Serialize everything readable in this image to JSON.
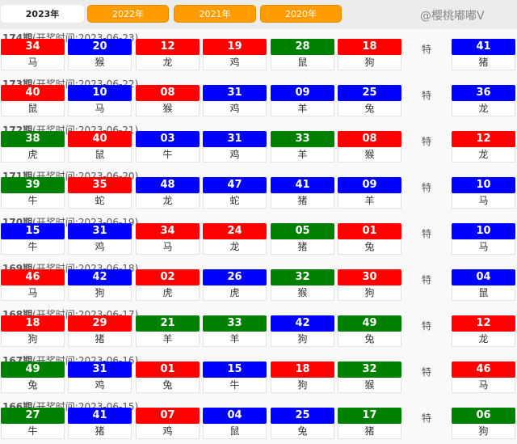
{
  "tabs": [
    "2023年",
    "2022年",
    "2021年",
    "2020年"
  ],
  "active_tab": 0,
  "special_label": "特",
  "issue_suffix": "期",
  "time_prefix": "(开奖时间:",
  "time_suffix": ")",
  "colors": {
    "r": "#ff0000",
    "b": "#0000ff",
    "g": "#008000"
  },
  "watermark": "@樱桃嘟嘟V",
  "draws": [
    {
      "issue": "174",
      "date": "2023-06-23",
      "balls": [
        [
          "34",
          "r",
          "马"
        ],
        [
          "20",
          "b",
          "猴"
        ],
        [
          "12",
          "r",
          "龙"
        ],
        [
          "19",
          "r",
          "鸡"
        ],
        [
          "28",
          "g",
          "鼠"
        ],
        [
          "18",
          "r",
          "狗"
        ]
      ],
      "special": [
        "41",
        "b",
        "猪"
      ]
    },
    {
      "issue": "173",
      "date": "2023-06-22",
      "balls": [
        [
          "40",
          "r",
          "鼠"
        ],
        [
          "10",
          "b",
          "马"
        ],
        [
          "08",
          "r",
          "猴"
        ],
        [
          "31",
          "b",
          "鸡"
        ],
        [
          "09",
          "b",
          "羊"
        ],
        [
          "25",
          "b",
          "兔"
        ]
      ],
      "special": [
        "36",
        "b",
        "龙"
      ]
    },
    {
      "issue": "172",
      "date": "2023-06-21",
      "balls": [
        [
          "38",
          "g",
          "虎"
        ],
        [
          "40",
          "r",
          "鼠"
        ],
        [
          "03",
          "b",
          "牛"
        ],
        [
          "31",
          "b",
          "鸡"
        ],
        [
          "33",
          "g",
          "羊"
        ],
        [
          "08",
          "r",
          "猴"
        ]
      ],
      "special": [
        "12",
        "r",
        "龙"
      ]
    },
    {
      "issue": "171",
      "date": "2023-06-20",
      "balls": [
        [
          "39",
          "g",
          "牛"
        ],
        [
          "35",
          "r",
          "蛇"
        ],
        [
          "48",
          "b",
          "龙"
        ],
        [
          "47",
          "b",
          "蛇"
        ],
        [
          "41",
          "b",
          "猪"
        ],
        [
          "09",
          "b",
          "羊"
        ]
      ],
      "special": [
        "10",
        "b",
        "马"
      ]
    },
    {
      "issue": "170",
      "date": "2023-06-19",
      "balls": [
        [
          "15",
          "b",
          "牛"
        ],
        [
          "31",
          "b",
          "鸡"
        ],
        [
          "34",
          "r",
          "马"
        ],
        [
          "24",
          "r",
          "龙"
        ],
        [
          "05",
          "g",
          "猪"
        ],
        [
          "01",
          "r",
          "兔"
        ]
      ],
      "special": [
        "10",
        "b",
        "马"
      ]
    },
    {
      "issue": "169",
      "date": "2023-06-18",
      "balls": [
        [
          "46",
          "r",
          "马"
        ],
        [
          "42",
          "b",
          "狗"
        ],
        [
          "02",
          "r",
          "虎"
        ],
        [
          "26",
          "b",
          "虎"
        ],
        [
          "32",
          "g",
          "猴"
        ],
        [
          "30",
          "r",
          "狗"
        ]
      ],
      "special": [
        "04",
        "b",
        "鼠"
      ]
    },
    {
      "issue": "168",
      "date": "2023-06-17",
      "balls": [
        [
          "18",
          "r",
          "狗"
        ],
        [
          "29",
          "r",
          "猪"
        ],
        [
          "21",
          "g",
          "羊"
        ],
        [
          "33",
          "g",
          "羊"
        ],
        [
          "42",
          "b",
          "狗"
        ],
        [
          "49",
          "g",
          "兔"
        ]
      ],
      "special": [
        "12",
        "r",
        "龙"
      ]
    },
    {
      "issue": "167",
      "date": "2023-06-16",
      "balls": [
        [
          "49",
          "g",
          "兔"
        ],
        [
          "31",
          "b",
          "鸡"
        ],
        [
          "01",
          "r",
          "兔"
        ],
        [
          "15",
          "b",
          "牛"
        ],
        [
          "18",
          "r",
          "狗"
        ],
        [
          "32",
          "g",
          "猴"
        ]
      ],
      "special": [
        "46",
        "r",
        "马"
      ]
    },
    {
      "issue": "166",
      "date": "2023-06-15",
      "balls": [
        [
          "27",
          "g",
          "牛"
        ],
        [
          "41",
          "b",
          "猪"
        ],
        [
          "07",
          "r",
          "鸡"
        ],
        [
          "04",
          "b",
          "鼠"
        ],
        [
          "25",
          "b",
          "兔"
        ],
        [
          "17",
          "g",
          "猪"
        ]
      ],
      "special": [
        "06",
        "g",
        "狗"
      ]
    }
  ]
}
